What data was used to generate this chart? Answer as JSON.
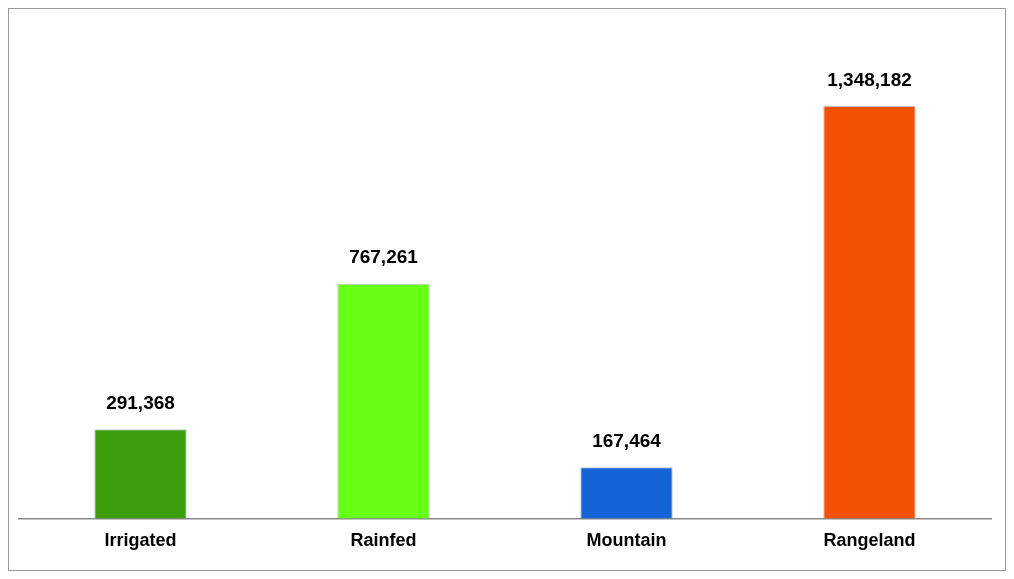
{
  "chart_data": {
    "type": "bar",
    "categories": [
      "Irrigated",
      "Rainfed",
      "Mountain",
      "Rangeland"
    ],
    "values": [
      291368,
      767261,
      167464,
      1348182
    ],
    "colors": [
      "#3c9e0c",
      "#66ff14",
      "#1464d8",
      "#f45008"
    ],
    "value_labels": [
      "291,368",
      "767,261",
      "167,464",
      "1,348,182"
    ],
    "grid": false,
    "legend": false
  }
}
